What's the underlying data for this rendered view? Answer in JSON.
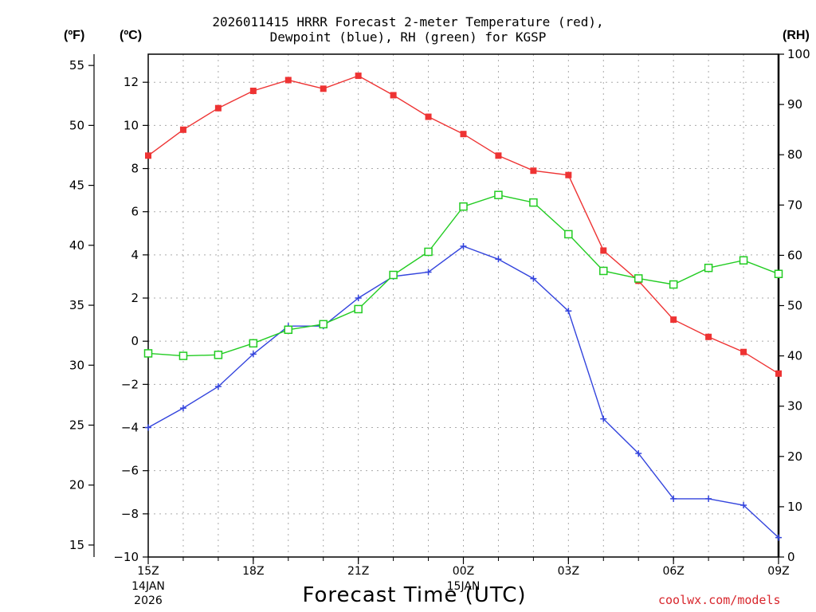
{
  "chart_data": {
    "type": "line",
    "title": "2026011415 HRRR Forecast 2-meter Temperature (red),",
    "subtitle": "Dewpoint (blue), RH (green) for KGSP",
    "xlabel": "Forecast Time (UTC)",
    "y_units_left_f": "(ºF)",
    "y_units_left_c": "(ºC)",
    "y_units_right": "(RH)",
    "credit": "coolwx.com/models",
    "hours": [
      0,
      1,
      2,
      3,
      4,
      5,
      6,
      7,
      8,
      9,
      10,
      11,
      12,
      13,
      14,
      15,
      16,
      17,
      18
    ],
    "x_ticks": [
      {
        "hour": 0,
        "label": "15Z",
        "sub1": "14JAN",
        "sub2": "2026"
      },
      {
        "hour": 3,
        "label": "18Z"
      },
      {
        "hour": 6,
        "label": "21Z"
      },
      {
        "hour": 9,
        "label": "00Z",
        "sub1": "15JAN"
      },
      {
        "hour": 12,
        "label": "03Z"
      },
      {
        "hour": 15,
        "label": "06Z"
      },
      {
        "hour": 18,
        "label": "09Z"
      }
    ],
    "celsius_axis": {
      "min": -10,
      "max": 13.3,
      "ticks": [
        -10,
        -8,
        -6,
        -4,
        -2,
        0,
        2,
        4,
        6,
        8,
        10,
        12
      ],
      "tick_labels": [
        "−10",
        "−8",
        "−6",
        "−4",
        "−2",
        "0",
        "2",
        "4",
        "6",
        "8",
        "10",
        "12"
      ]
    },
    "fahrenheit_axis": {
      "ticks": [
        15,
        20,
        25,
        30,
        35,
        40,
        45,
        50,
        55
      ]
    },
    "rh_axis": {
      "min": 0,
      "max": 100,
      "ticks": [
        0,
        10,
        20,
        30,
        40,
        50,
        60,
        70,
        80,
        90,
        100
      ]
    },
    "series": [
      {
        "name": "2-meter Temperature",
        "axis": "C",
        "color": "#ee3333",
        "marker": "filled-square",
        "values": [
          8.6,
          9.8,
          10.8,
          11.6,
          12.1,
          11.7,
          12.3,
          11.4,
          10.4,
          9.6,
          8.6,
          7.9,
          7.7,
          4.2,
          2.8,
          1.0,
          0.2,
          -0.5,
          -1.5
        ]
      },
      {
        "name": "Dewpoint",
        "axis": "C",
        "color": "#3344dd",
        "marker": "plus",
        "values": [
          -4.0,
          -3.1,
          -2.1,
          -0.6,
          0.7,
          0.7,
          2.0,
          3.0,
          3.2,
          4.4,
          3.8,
          2.9,
          1.4,
          -3.6,
          -5.2,
          -7.3,
          -7.3,
          -7.6,
          -9.1
        ]
      },
      {
        "name": "RH",
        "axis": "RH",
        "color": "#22cc22",
        "marker": "open-square",
        "values": [
          40.5,
          40.0,
          40.2,
          42.5,
          45.2,
          46.3,
          49.3,
          56.1,
          60.7,
          69.7,
          72.0,
          70.5,
          64.2,
          56.9,
          55.4,
          54.2,
          57.5,
          59.0,
          56.3
        ]
      }
    ]
  }
}
